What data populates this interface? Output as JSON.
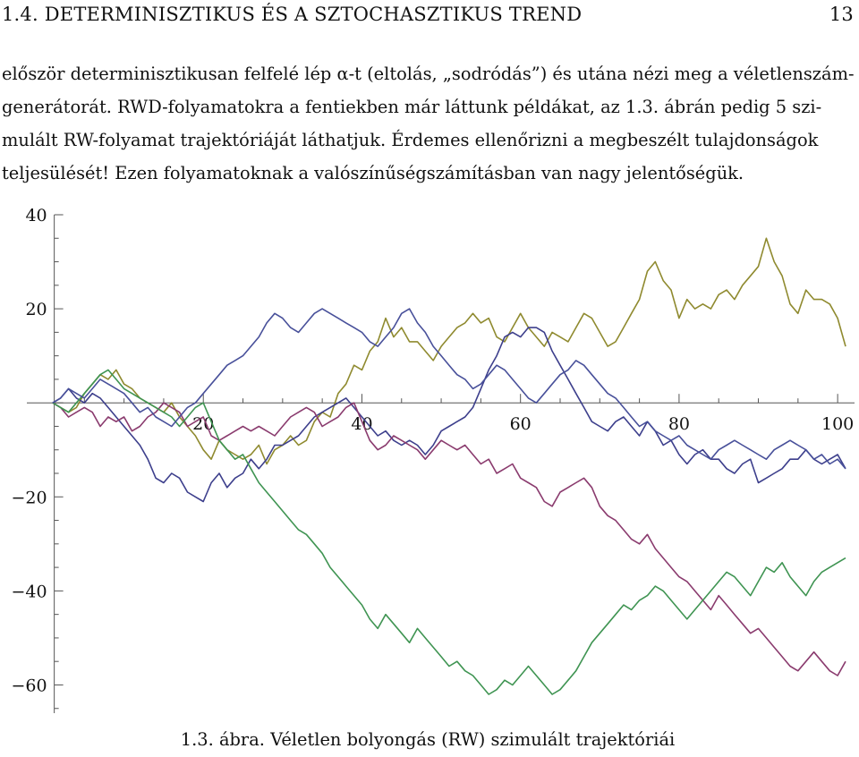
{
  "header": {
    "section": "1.4. DETERMINISZTIKUS ÉS A SZTOCHASZTIKUS TREND",
    "page_number": "13"
  },
  "paragraph": {
    "lines": [
      "először determinisztikusan felfelé lép α-t (eltolás, „sodródás”) és utána nézi meg a véletlenszám-",
      "generátorát. RWD-folyamatokra a fentiekben már láttunk példákat, az 1.3. ábrán pedig 5 szi-",
      "mulált RW-folyamat trajektóriáját láthatjuk. Érdemes ellenőrizni a megbeszélt tulajdonságok",
      "teljesülését! Ezen folyamatoknak a valószínűségszámításban van nagy jelentőségük."
    ]
  },
  "caption": "1.3. ábra. Véletlen bolyongás (RW) szimulált trajektóriái",
  "chart_data": {
    "type": "line",
    "title": "",
    "xlabel": "",
    "ylabel": "",
    "xlim": [
      0,
      101
    ],
    "ylim": [
      -66,
      40
    ],
    "x_ticks": [
      20,
      40,
      60,
      80,
      100
    ],
    "y_ticks": [
      40,
      20,
      -20,
      -40,
      -60
    ],
    "x_tick_labels": [
      "20",
      "40",
      "60",
      "80",
      "100"
    ],
    "y_tick_labels": [
      "40",
      "20",
      "−20",
      "−40",
      "−60"
    ],
    "grid": false,
    "legend": "none",
    "series_colors": [
      "#8f8a2f",
      "#3d3f8c",
      "#8a3b6e",
      "#3f9452",
      "#48509a"
    ],
    "series": [
      {
        "values": [
          0,
          -1,
          -2,
          -1,
          2,
          4,
          6,
          5,
          7,
          4,
          3,
          1,
          0,
          -1,
          -2,
          0,
          -3,
          -5,
          -7,
          -10,
          -12,
          -8,
          -10,
          -11,
          -12,
          -11,
          -9,
          -13,
          -10,
          -9,
          -7,
          -9,
          -8,
          -4,
          -2,
          -3,
          2,
          4,
          8,
          7,
          11,
          13,
          18,
          14,
          16,
          13,
          13,
          11,
          9,
          12,
          14,
          16,
          17,
          19,
          17,
          18,
          14,
          13,
          16,
          19,
          16,
          14,
          12,
          15,
          14,
          13,
          16,
          19,
          18,
          15,
          12,
          13,
          16,
          19,
          22,
          28,
          30,
          26,
          24,
          18,
          22,
          20,
          21,
          20,
          23,
          24,
          22,
          25,
          27,
          29,
          35,
          30,
          27,
          21,
          19,
          24,
          22,
          22,
          21,
          18,
          12
        ]
      },
      {
        "values": [
          0,
          1,
          3,
          1,
          0,
          2,
          1,
          -1,
          -3,
          -5,
          -7,
          -9,
          -12,
          -16,
          -17,
          -15,
          -16,
          -19,
          -20,
          -21,
          -17,
          -15,
          -18,
          -16,
          -15,
          -12,
          -14,
          -12,
          -9,
          -9,
          -8,
          -7,
          -5,
          -3,
          -2,
          -1,
          0,
          1,
          -1,
          -3,
          -5,
          -7,
          -6,
          -8,
          -9,
          -8,
          -9,
          -11,
          -9,
          -6,
          -5,
          -4,
          -3,
          -1,
          3,
          7,
          10,
          14,
          15,
          14,
          16,
          16,
          15,
          11,
          8,
          5,
          2,
          -1,
          -4,
          -5,
          -6,
          -4,
          -3,
          -5,
          -7,
          -4,
          -6,
          -9,
          -8,
          -11,
          -13,
          -11,
          -10,
          -12,
          -12,
          -14,
          -15,
          -13,
          -12,
          -17,
          -16,
          -15,
          -14,
          -12,
          -12,
          -10,
          -12,
          -13,
          -12,
          -11,
          -14
        ]
      },
      {
        "values": [
          0,
          -1,
          -3,
          -2,
          -1,
          -2,
          -5,
          -3,
          -4,
          -3,
          -6,
          -5,
          -3,
          -2,
          0,
          -1,
          -2,
          -5,
          -4,
          -3,
          -7,
          -8,
          -7,
          -6,
          -5,
          -6,
          -5,
          -6,
          -7,
          -5,
          -3,
          -2,
          -1,
          -2,
          -5,
          -4,
          -3,
          -1,
          0,
          -4,
          -8,
          -10,
          -9,
          -7,
          -8,
          -9,
          -10,
          -12,
          -10,
          -8,
          -9,
          -10,
          -9,
          -11,
          -13,
          -12,
          -15,
          -14,
          -13,
          -16,
          -17,
          -18,
          -21,
          -22,
          -19,
          -18,
          -17,
          -16,
          -18,
          -22,
          -24,
          -25,
          -27,
          -29,
          -30,
          -28,
          -31,
          -33,
          -35,
          -37,
          -38,
          -40,
          -42,
          -44,
          -41,
          -43,
          -45,
          -47,
          -49,
          -48,
          -50,
          -52,
          -54,
          -56,
          -57,
          -55,
          -53,
          -55,
          -57,
          -58,
          -55
        ]
      },
      {
        "values": [
          0,
          -1,
          -2,
          0,
          2,
          4,
          6,
          7,
          5,
          3,
          2,
          1,
          0,
          -1,
          -2,
          -3,
          -5,
          -3,
          -1,
          0,
          -4,
          -8,
          -10,
          -12,
          -11,
          -14,
          -17,
          -19,
          -21,
          -23,
          -25,
          -27,
          -28,
          -30,
          -32,
          -35,
          -37,
          -39,
          -41,
          -43,
          -46,
          -48,
          -45,
          -47,
          -49,
          -51,
          -48,
          -50,
          -52,
          -54,
          -56,
          -55,
          -57,
          -58,
          -60,
          -62,
          -61,
          -59,
          -60,
          -58,
          -56,
          -58,
          -60,
          -62,
          -61,
          -59,
          -57,
          -54,
          -51,
          -49,
          -47,
          -45,
          -43,
          -44,
          -42,
          -41,
          -39,
          -40,
          -42,
          -44,
          -46,
          -44,
          -42,
          -40,
          -38,
          -36,
          -37,
          -39,
          -41,
          -38,
          -35,
          -36,
          -34,
          -37,
          -39,
          -41,
          -38,
          -36,
          -35,
          -34,
          -33
        ]
      },
      {
        "values": [
          0,
          1,
          3,
          2,
          1,
          3,
          5,
          4,
          3,
          2,
          0,
          -2,
          -1,
          -3,
          -4,
          -5,
          -3,
          -1,
          0,
          2,
          4,
          6,
          8,
          9,
          10,
          12,
          14,
          17,
          19,
          18,
          16,
          15,
          17,
          19,
          20,
          19,
          18,
          17,
          16,
          15,
          13,
          12,
          14,
          16,
          19,
          20,
          17,
          15,
          12,
          10,
          8,
          6,
          5,
          3,
          4,
          6,
          8,
          7,
          5,
          3,
          1,
          0,
          2,
          4,
          6,
          7,
          9,
          8,
          6,
          4,
          2,
          1,
          -1,
          -3,
          -5,
          -4,
          -6,
          -7,
          -8,
          -7,
          -9,
          -10,
          -11,
          -12,
          -10,
          -9,
          -8,
          -9,
          -10,
          -11,
          -12,
          -10,
          -9,
          -8,
          -9,
          -10,
          -12,
          -11,
          -13,
          -12,
          -14
        ]
      }
    ]
  }
}
